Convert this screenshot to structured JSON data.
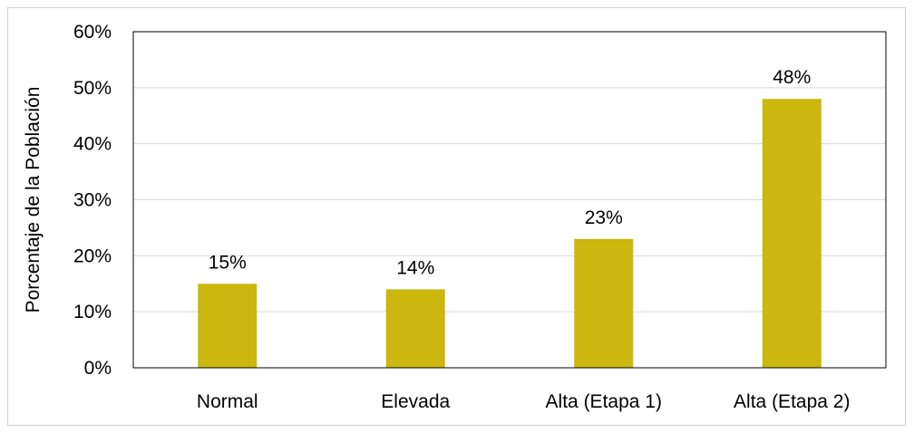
{
  "chart_data": {
    "type": "bar",
    "categories": [
      "Normal",
      "Elevada",
      "Alta (Etapa 1)",
      "Alta (Etapa 2)"
    ],
    "values": [
      15,
      14,
      23,
      48
    ],
    "data_labels": [
      "15%",
      "14%",
      "23%",
      "48%"
    ],
    "ylabel": "Porcentaje de la Población",
    "xlabel": "",
    "ylim": [
      0,
      60
    ],
    "yticks": [
      0,
      10,
      20,
      30,
      40,
      50,
      60
    ],
    "ytick_labels": [
      "0%",
      "10%",
      "20%",
      "30%",
      "40%",
      "50%",
      "60%"
    ],
    "grid": true,
    "legend": "none",
    "bar_color": "#CBB70E",
    "grid_color": "#D9D9D9",
    "axis_color": "#000000"
  }
}
